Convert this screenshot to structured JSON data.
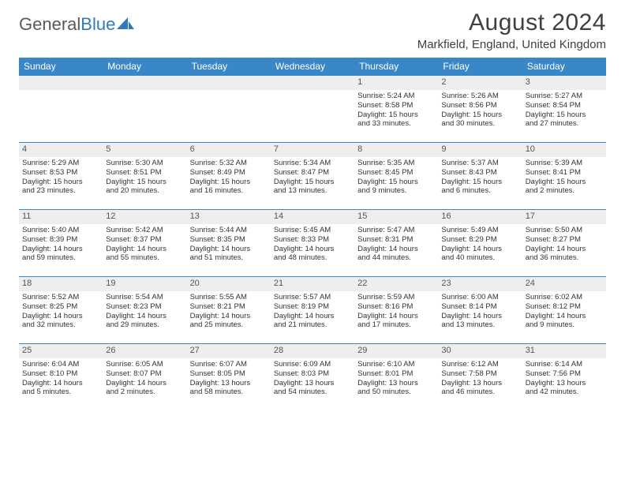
{
  "logo": {
    "part1": "General",
    "part2": "Blue"
  },
  "title": "August 2024",
  "location": "Markfield, England, United Kingdom",
  "colors": {
    "header_bg": "#3a87c8",
    "header_text": "#ffffff",
    "daynum_bg": "#eeeeee",
    "daynum_text": "#555555",
    "body_text": "#333333",
    "rule": "#3a87c8",
    "logo_gray": "#5a5a5a",
    "logo_blue": "#2f7bbf"
  },
  "weekdays": [
    "Sunday",
    "Monday",
    "Tuesday",
    "Wednesday",
    "Thursday",
    "Friday",
    "Saturday"
  ],
  "weeks": [
    [
      null,
      null,
      null,
      null,
      {
        "n": "1",
        "sr": "Sunrise: 5:24 AM",
        "ss": "Sunset: 8:58 PM",
        "d1": "Daylight: 15 hours",
        "d2": "and 33 minutes."
      },
      {
        "n": "2",
        "sr": "Sunrise: 5:26 AM",
        "ss": "Sunset: 8:56 PM",
        "d1": "Daylight: 15 hours",
        "d2": "and 30 minutes."
      },
      {
        "n": "3",
        "sr": "Sunrise: 5:27 AM",
        "ss": "Sunset: 8:54 PM",
        "d1": "Daylight: 15 hours",
        "d2": "and 27 minutes."
      }
    ],
    [
      {
        "n": "4",
        "sr": "Sunrise: 5:29 AM",
        "ss": "Sunset: 8:53 PM",
        "d1": "Daylight: 15 hours",
        "d2": "and 23 minutes."
      },
      {
        "n": "5",
        "sr": "Sunrise: 5:30 AM",
        "ss": "Sunset: 8:51 PM",
        "d1": "Daylight: 15 hours",
        "d2": "and 20 minutes."
      },
      {
        "n": "6",
        "sr": "Sunrise: 5:32 AM",
        "ss": "Sunset: 8:49 PM",
        "d1": "Daylight: 15 hours",
        "d2": "and 16 minutes."
      },
      {
        "n": "7",
        "sr": "Sunrise: 5:34 AM",
        "ss": "Sunset: 8:47 PM",
        "d1": "Daylight: 15 hours",
        "d2": "and 13 minutes."
      },
      {
        "n": "8",
        "sr": "Sunrise: 5:35 AM",
        "ss": "Sunset: 8:45 PM",
        "d1": "Daylight: 15 hours",
        "d2": "and 9 minutes."
      },
      {
        "n": "9",
        "sr": "Sunrise: 5:37 AM",
        "ss": "Sunset: 8:43 PM",
        "d1": "Daylight: 15 hours",
        "d2": "and 6 minutes."
      },
      {
        "n": "10",
        "sr": "Sunrise: 5:39 AM",
        "ss": "Sunset: 8:41 PM",
        "d1": "Daylight: 15 hours",
        "d2": "and 2 minutes."
      }
    ],
    [
      {
        "n": "11",
        "sr": "Sunrise: 5:40 AM",
        "ss": "Sunset: 8:39 PM",
        "d1": "Daylight: 14 hours",
        "d2": "and 59 minutes."
      },
      {
        "n": "12",
        "sr": "Sunrise: 5:42 AM",
        "ss": "Sunset: 8:37 PM",
        "d1": "Daylight: 14 hours",
        "d2": "and 55 minutes."
      },
      {
        "n": "13",
        "sr": "Sunrise: 5:44 AM",
        "ss": "Sunset: 8:35 PM",
        "d1": "Daylight: 14 hours",
        "d2": "and 51 minutes."
      },
      {
        "n": "14",
        "sr": "Sunrise: 5:45 AM",
        "ss": "Sunset: 8:33 PM",
        "d1": "Daylight: 14 hours",
        "d2": "and 48 minutes."
      },
      {
        "n": "15",
        "sr": "Sunrise: 5:47 AM",
        "ss": "Sunset: 8:31 PM",
        "d1": "Daylight: 14 hours",
        "d2": "and 44 minutes."
      },
      {
        "n": "16",
        "sr": "Sunrise: 5:49 AM",
        "ss": "Sunset: 8:29 PM",
        "d1": "Daylight: 14 hours",
        "d2": "and 40 minutes."
      },
      {
        "n": "17",
        "sr": "Sunrise: 5:50 AM",
        "ss": "Sunset: 8:27 PM",
        "d1": "Daylight: 14 hours",
        "d2": "and 36 minutes."
      }
    ],
    [
      {
        "n": "18",
        "sr": "Sunrise: 5:52 AM",
        "ss": "Sunset: 8:25 PM",
        "d1": "Daylight: 14 hours",
        "d2": "and 32 minutes."
      },
      {
        "n": "19",
        "sr": "Sunrise: 5:54 AM",
        "ss": "Sunset: 8:23 PM",
        "d1": "Daylight: 14 hours",
        "d2": "and 29 minutes."
      },
      {
        "n": "20",
        "sr": "Sunrise: 5:55 AM",
        "ss": "Sunset: 8:21 PM",
        "d1": "Daylight: 14 hours",
        "d2": "and 25 minutes."
      },
      {
        "n": "21",
        "sr": "Sunrise: 5:57 AM",
        "ss": "Sunset: 8:19 PM",
        "d1": "Daylight: 14 hours",
        "d2": "and 21 minutes."
      },
      {
        "n": "22",
        "sr": "Sunrise: 5:59 AM",
        "ss": "Sunset: 8:16 PM",
        "d1": "Daylight: 14 hours",
        "d2": "and 17 minutes."
      },
      {
        "n": "23",
        "sr": "Sunrise: 6:00 AM",
        "ss": "Sunset: 8:14 PM",
        "d1": "Daylight: 14 hours",
        "d2": "and 13 minutes."
      },
      {
        "n": "24",
        "sr": "Sunrise: 6:02 AM",
        "ss": "Sunset: 8:12 PM",
        "d1": "Daylight: 14 hours",
        "d2": "and 9 minutes."
      }
    ],
    [
      {
        "n": "25",
        "sr": "Sunrise: 6:04 AM",
        "ss": "Sunset: 8:10 PM",
        "d1": "Daylight: 14 hours",
        "d2": "and 5 minutes."
      },
      {
        "n": "26",
        "sr": "Sunrise: 6:05 AM",
        "ss": "Sunset: 8:07 PM",
        "d1": "Daylight: 14 hours",
        "d2": "and 2 minutes."
      },
      {
        "n": "27",
        "sr": "Sunrise: 6:07 AM",
        "ss": "Sunset: 8:05 PM",
        "d1": "Daylight: 13 hours",
        "d2": "and 58 minutes."
      },
      {
        "n": "28",
        "sr": "Sunrise: 6:09 AM",
        "ss": "Sunset: 8:03 PM",
        "d1": "Daylight: 13 hours",
        "d2": "and 54 minutes."
      },
      {
        "n": "29",
        "sr": "Sunrise: 6:10 AM",
        "ss": "Sunset: 8:01 PM",
        "d1": "Daylight: 13 hours",
        "d2": "and 50 minutes."
      },
      {
        "n": "30",
        "sr": "Sunrise: 6:12 AM",
        "ss": "Sunset: 7:58 PM",
        "d1": "Daylight: 13 hours",
        "d2": "and 46 minutes."
      },
      {
        "n": "31",
        "sr": "Sunrise: 6:14 AM",
        "ss": "Sunset: 7:56 PM",
        "d1": "Daylight: 13 hours",
        "d2": "and 42 minutes."
      }
    ]
  ]
}
